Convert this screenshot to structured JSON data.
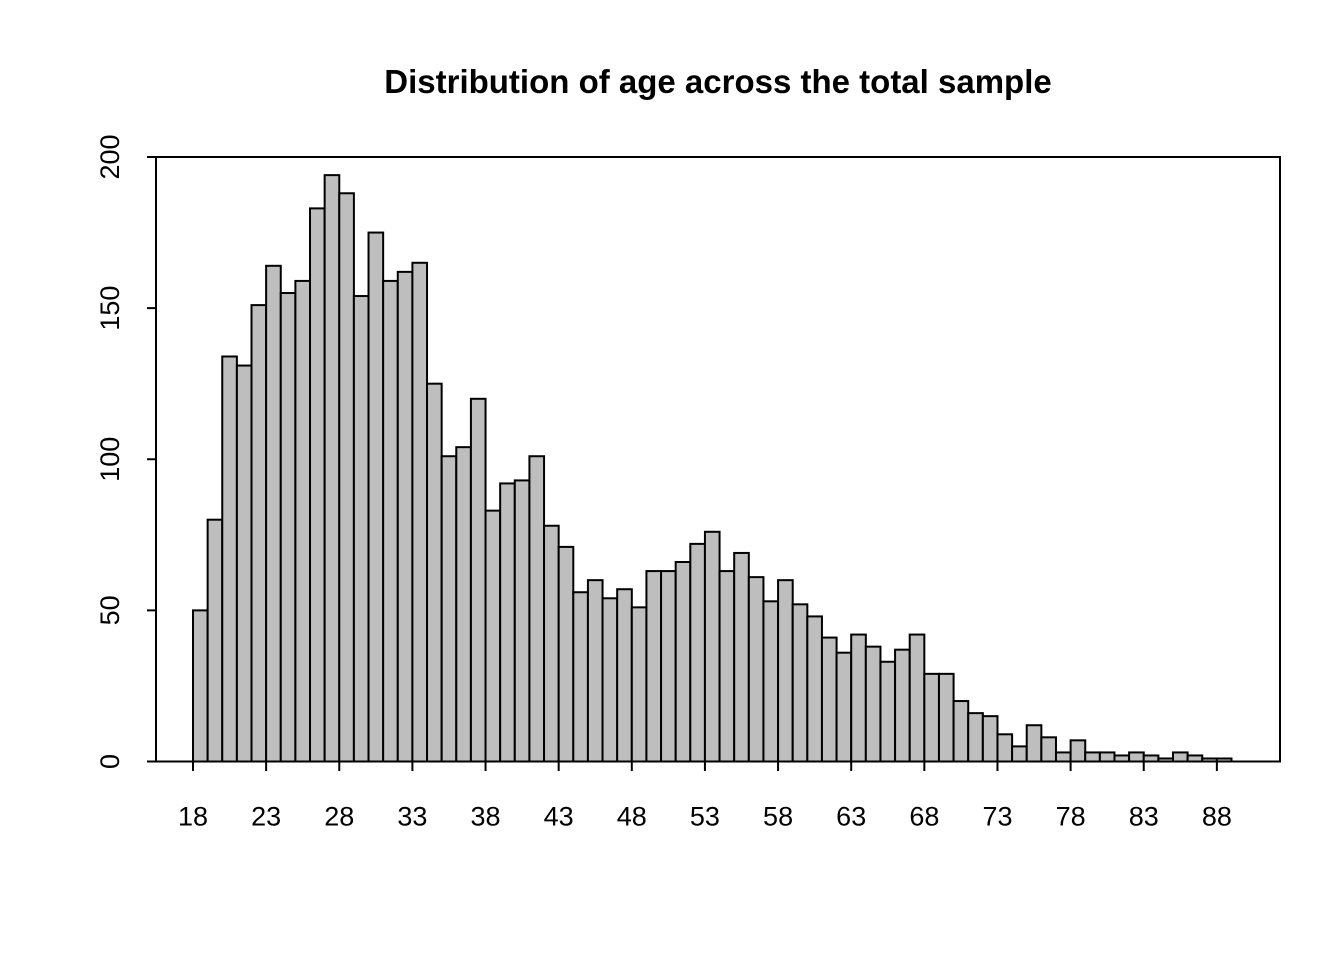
{
  "chart_data": {
    "type": "bar",
    "subtype": "histogram",
    "title": "Distribution of age across the total sample",
    "xlabel": "",
    "ylabel": "",
    "bin_width": 1,
    "bin_start": 18,
    "bin_end": 89,
    "categories": [
      18,
      19,
      20,
      21,
      22,
      23,
      24,
      25,
      26,
      27,
      28,
      29,
      30,
      31,
      32,
      33,
      34,
      35,
      36,
      37,
      38,
      39,
      40,
      41,
      42,
      43,
      44,
      45,
      46,
      47,
      48,
      49,
      50,
      51,
      52,
      53,
      54,
      55,
      56,
      57,
      58,
      59,
      60,
      61,
      62,
      63,
      64,
      65,
      66,
      67,
      68,
      69,
      70,
      71,
      72,
      73,
      74,
      75,
      76,
      77,
      78,
      79,
      80,
      81,
      82,
      83,
      84,
      85,
      86,
      87,
      88
    ],
    "values": [
      50,
      80,
      134,
      131,
      151,
      164,
      155,
      159,
      183,
      194,
      188,
      154,
      175,
      159,
      162,
      165,
      125,
      101,
      104,
      120,
      83,
      92,
      93,
      101,
      78,
      71,
      56,
      60,
      54,
      57,
      51,
      63,
      63,
      66,
      72,
      76,
      63,
      69,
      61,
      53,
      60,
      52,
      48,
      41,
      36,
      42,
      38,
      33,
      37,
      42,
      29,
      29,
      20,
      16,
      15,
      9,
      5,
      12,
      8,
      3,
      7,
      3,
      3,
      2,
      3,
      2,
      1,
      3,
      2,
      1,
      1
    ],
    "x_ticks": [
      18,
      23,
      28,
      33,
      38,
      43,
      48,
      53,
      58,
      63,
      68,
      73,
      78,
      83,
      88
    ],
    "y_ticks": [
      0,
      50,
      100,
      150,
      200
    ],
    "xlim": [
      18,
      89
    ],
    "ylim": [
      0,
      200
    ],
    "grid": "off",
    "legend": "none",
    "colors": {
      "bar_fill": "#BEBEBE",
      "bar_border": "#000000",
      "axis": "#000000",
      "text": "#000000",
      "background": "#FFFFFF"
    }
  }
}
